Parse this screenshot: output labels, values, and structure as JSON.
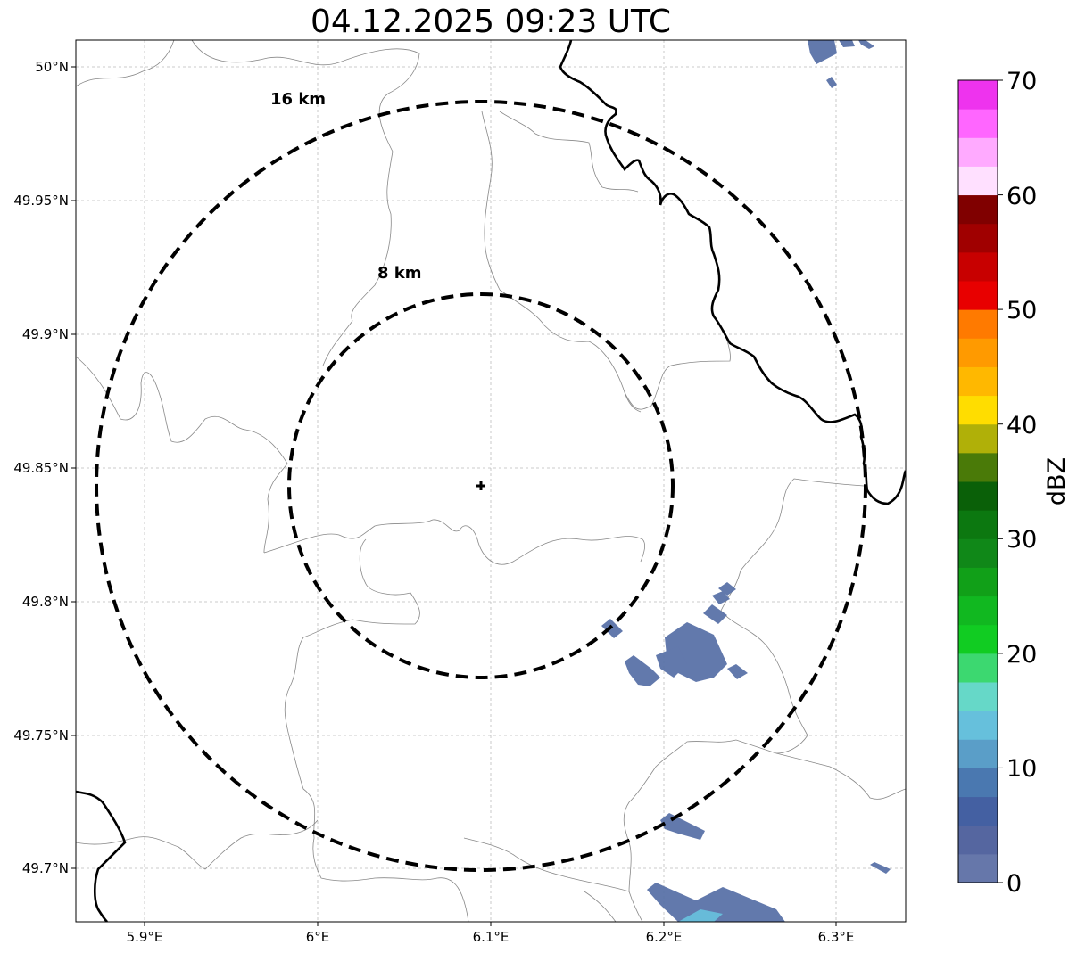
{
  "title": "04.12.2025 09:23 UTC",
  "map": {
    "lon_ticks": [
      "5.9°E",
      "6°E",
      "6.1°E",
      "6.2°E",
      "6.3°E"
    ],
    "lat_ticks": [
      "50°N",
      "49.95°N",
      "49.9°N",
      "49.85°N",
      "49.8°N",
      "49.75°N",
      "49.7°N"
    ],
    "ring_labels": [
      "16 km",
      "8 km"
    ],
    "radar_site_marker": "plus-icon",
    "grid": true
  },
  "colorbar": {
    "label": "dBZ",
    "ticks": [
      "0",
      "10",
      "20",
      "30",
      "40",
      "50",
      "60",
      "70"
    ],
    "colors": [
      "#6677aa",
      "#5566a0",
      "#4460a2",
      "#4a78b0",
      "#5a9ec8",
      "#66c0dc",
      "#66d8c8",
      "#3cd870",
      "#11cc22",
      "#11b820",
      "#11a018",
      "#108818",
      "#0c7810",
      "#0a6008",
      "#4a7a08",
      "#b0b008",
      "#ffdd00",
      "#ffb800",
      "#ff9a00",
      "#ff7a00",
      "#e80000",
      "#c80000",
      "#a00000",
      "#800000",
      "#ffe0ff",
      "#ffaaff",
      "#ff66ff",
      "#ee33ee"
    ]
  },
  "colors": {
    "coastline": "#000000",
    "borders": "#888888",
    "gridline": "#bbbbbb",
    "echo": "#5a72a8"
  }
}
